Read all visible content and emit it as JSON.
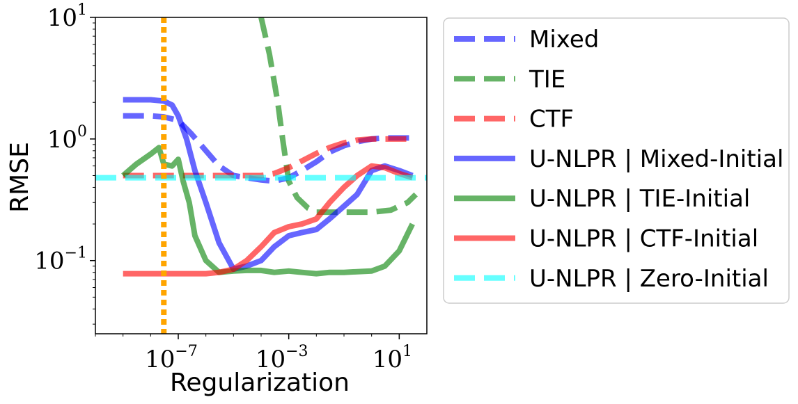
{
  "chart_data": {
    "type": "line",
    "xlabel": "Regularization",
    "ylabel": "RMSE",
    "xscale": "log",
    "yscale": "log",
    "xlim": [
      1e-10,
      100.0
    ],
    "ylim": [
      0.025,
      10
    ],
    "x_ticks": [
      {
        "value": 1e-07,
        "base": "10",
        "exp": "−7"
      },
      {
        "value": 0.001,
        "base": "10",
        "exp": "−3"
      },
      {
        "value": 10,
        "base": "10",
        "exp": "1"
      }
    ],
    "y_ticks": [
      {
        "value": 0.1,
        "base": "10",
        "exp": "−1"
      },
      {
        "value": 1,
        "base": "10",
        "exp": "0"
      },
      {
        "value": 10,
        "base": "10",
        "exp": "1"
      }
    ],
    "vline": {
      "x": 3e-08,
      "color": "#ffa500"
    },
    "legend_position": "outside-right",
    "series": [
      {
        "name": "Mixed",
        "color": "#0000ff",
        "style": "dashed",
        "x": [
          1e-09,
          3e-09,
          1e-08,
          3e-08,
          1e-07,
          3e-07,
          1e-06,
          3e-06,
          1e-05,
          3e-05,
          0.0001,
          0.0003,
          0.001,
          0.003,
          0.01,
          0.03,
          0.1,
          0.3,
          1,
          3,
          10,
          30
        ],
        "y": [
          1.55,
          1.55,
          1.55,
          1.52,
          1.42,
          1.1,
          0.8,
          0.6,
          0.5,
          0.48,
          0.46,
          0.45,
          0.48,
          0.55,
          0.65,
          0.78,
          0.88,
          0.95,
          1.0,
          1.02,
          1.02,
          1.02
        ]
      },
      {
        "name": "TIE",
        "color": "#008000",
        "style": "dashed",
        "x": [
          0.0001,
          0.0002,
          0.0004,
          0.0006,
          0.001,
          0.002,
          0.005,
          0.01,
          0.1,
          1,
          5,
          10,
          20,
          40
        ],
        "y": [
          10,
          5,
          2,
          1,
          0.45,
          0.33,
          0.27,
          0.25,
          0.25,
          0.25,
          0.26,
          0.28,
          0.3,
          0.35
        ]
      },
      {
        "name": "CTF",
        "color": "#ff0000",
        "style": "dashed",
        "x": [
          1e-09,
          1e-08,
          1e-07,
          1e-06,
          1e-05,
          0.0001,
          0.0003,
          0.001,
          0.003,
          0.01,
          0.03,
          0.1,
          0.3,
          1,
          10,
          30
        ],
        "y": [
          0.5,
          0.5,
          0.5,
          0.5,
          0.5,
          0.5,
          0.52,
          0.58,
          0.66,
          0.76,
          0.85,
          0.93,
          0.98,
          1.0,
          1.0,
          1.0
        ]
      },
      {
        "name": "U-NLPR | Mixed-Initial",
        "color": "#0000ff",
        "style": "solid",
        "x": [
          1e-09,
          3e-09,
          1e-08,
          3e-08,
          6e-08,
          1e-07,
          2e-07,
          4e-07,
          1e-06,
          3e-06,
          1e-05,
          3e-05,
          0.0001,
          0.0003,
          0.001,
          0.003,
          0.01,
          0.03,
          0.1,
          0.3,
          1,
          3,
          10,
          30
        ],
        "y": [
          2.1,
          2.1,
          2.1,
          2.05,
          1.9,
          1.55,
          1.0,
          0.55,
          0.3,
          0.14,
          0.085,
          0.09,
          0.1,
          0.13,
          0.16,
          0.17,
          0.18,
          0.22,
          0.28,
          0.35,
          0.55,
          0.6,
          0.55,
          0.5
        ]
      },
      {
        "name": "U-NLPR | TIE-Initial",
        "color": "#008000",
        "style": "solid",
        "x": [
          1e-09,
          3e-09,
          1e-08,
          2e-08,
          3e-08,
          6e-08,
          1e-07,
          1.5e-07,
          2.5e-07,
          4e-07,
          1e-06,
          3e-06,
          1e-05,
          3e-05,
          0.0001,
          0.0003,
          0.001,
          0.003,
          0.01,
          0.03,
          0.1,
          0.3,
          1,
          3,
          10,
          30
        ],
        "y": [
          0.5,
          0.62,
          0.75,
          0.85,
          0.62,
          0.6,
          0.68,
          0.45,
          0.3,
          0.16,
          0.1,
          0.08,
          0.082,
          0.083,
          0.083,
          0.08,
          0.082,
          0.08,
          0.078,
          0.08,
          0.08,
          0.081,
          0.082,
          0.09,
          0.12,
          0.2
        ]
      },
      {
        "name": "U-NLPR | CTF-Initial",
        "color": "#ff0000",
        "style": "solid",
        "x": [
          1e-09,
          1e-08,
          1e-07,
          1e-06,
          3e-06,
          1e-05,
          3e-05,
          0.0001,
          0.0003,
          0.001,
          0.003,
          0.01,
          0.03,
          0.1,
          0.3,
          1,
          3,
          10,
          30
        ],
        "y": [
          0.078,
          0.078,
          0.078,
          0.078,
          0.08,
          0.085,
          0.1,
          0.13,
          0.17,
          0.19,
          0.2,
          0.22,
          0.3,
          0.4,
          0.5,
          0.6,
          0.58,
          0.52,
          0.48
        ]
      },
      {
        "name": "U-NLPR | Zero-Initial",
        "color": "#00ffff",
        "style": "dashed",
        "x": [
          1e-10,
          100.0
        ],
        "y": [
          0.48,
          0.48
        ]
      }
    ]
  }
}
